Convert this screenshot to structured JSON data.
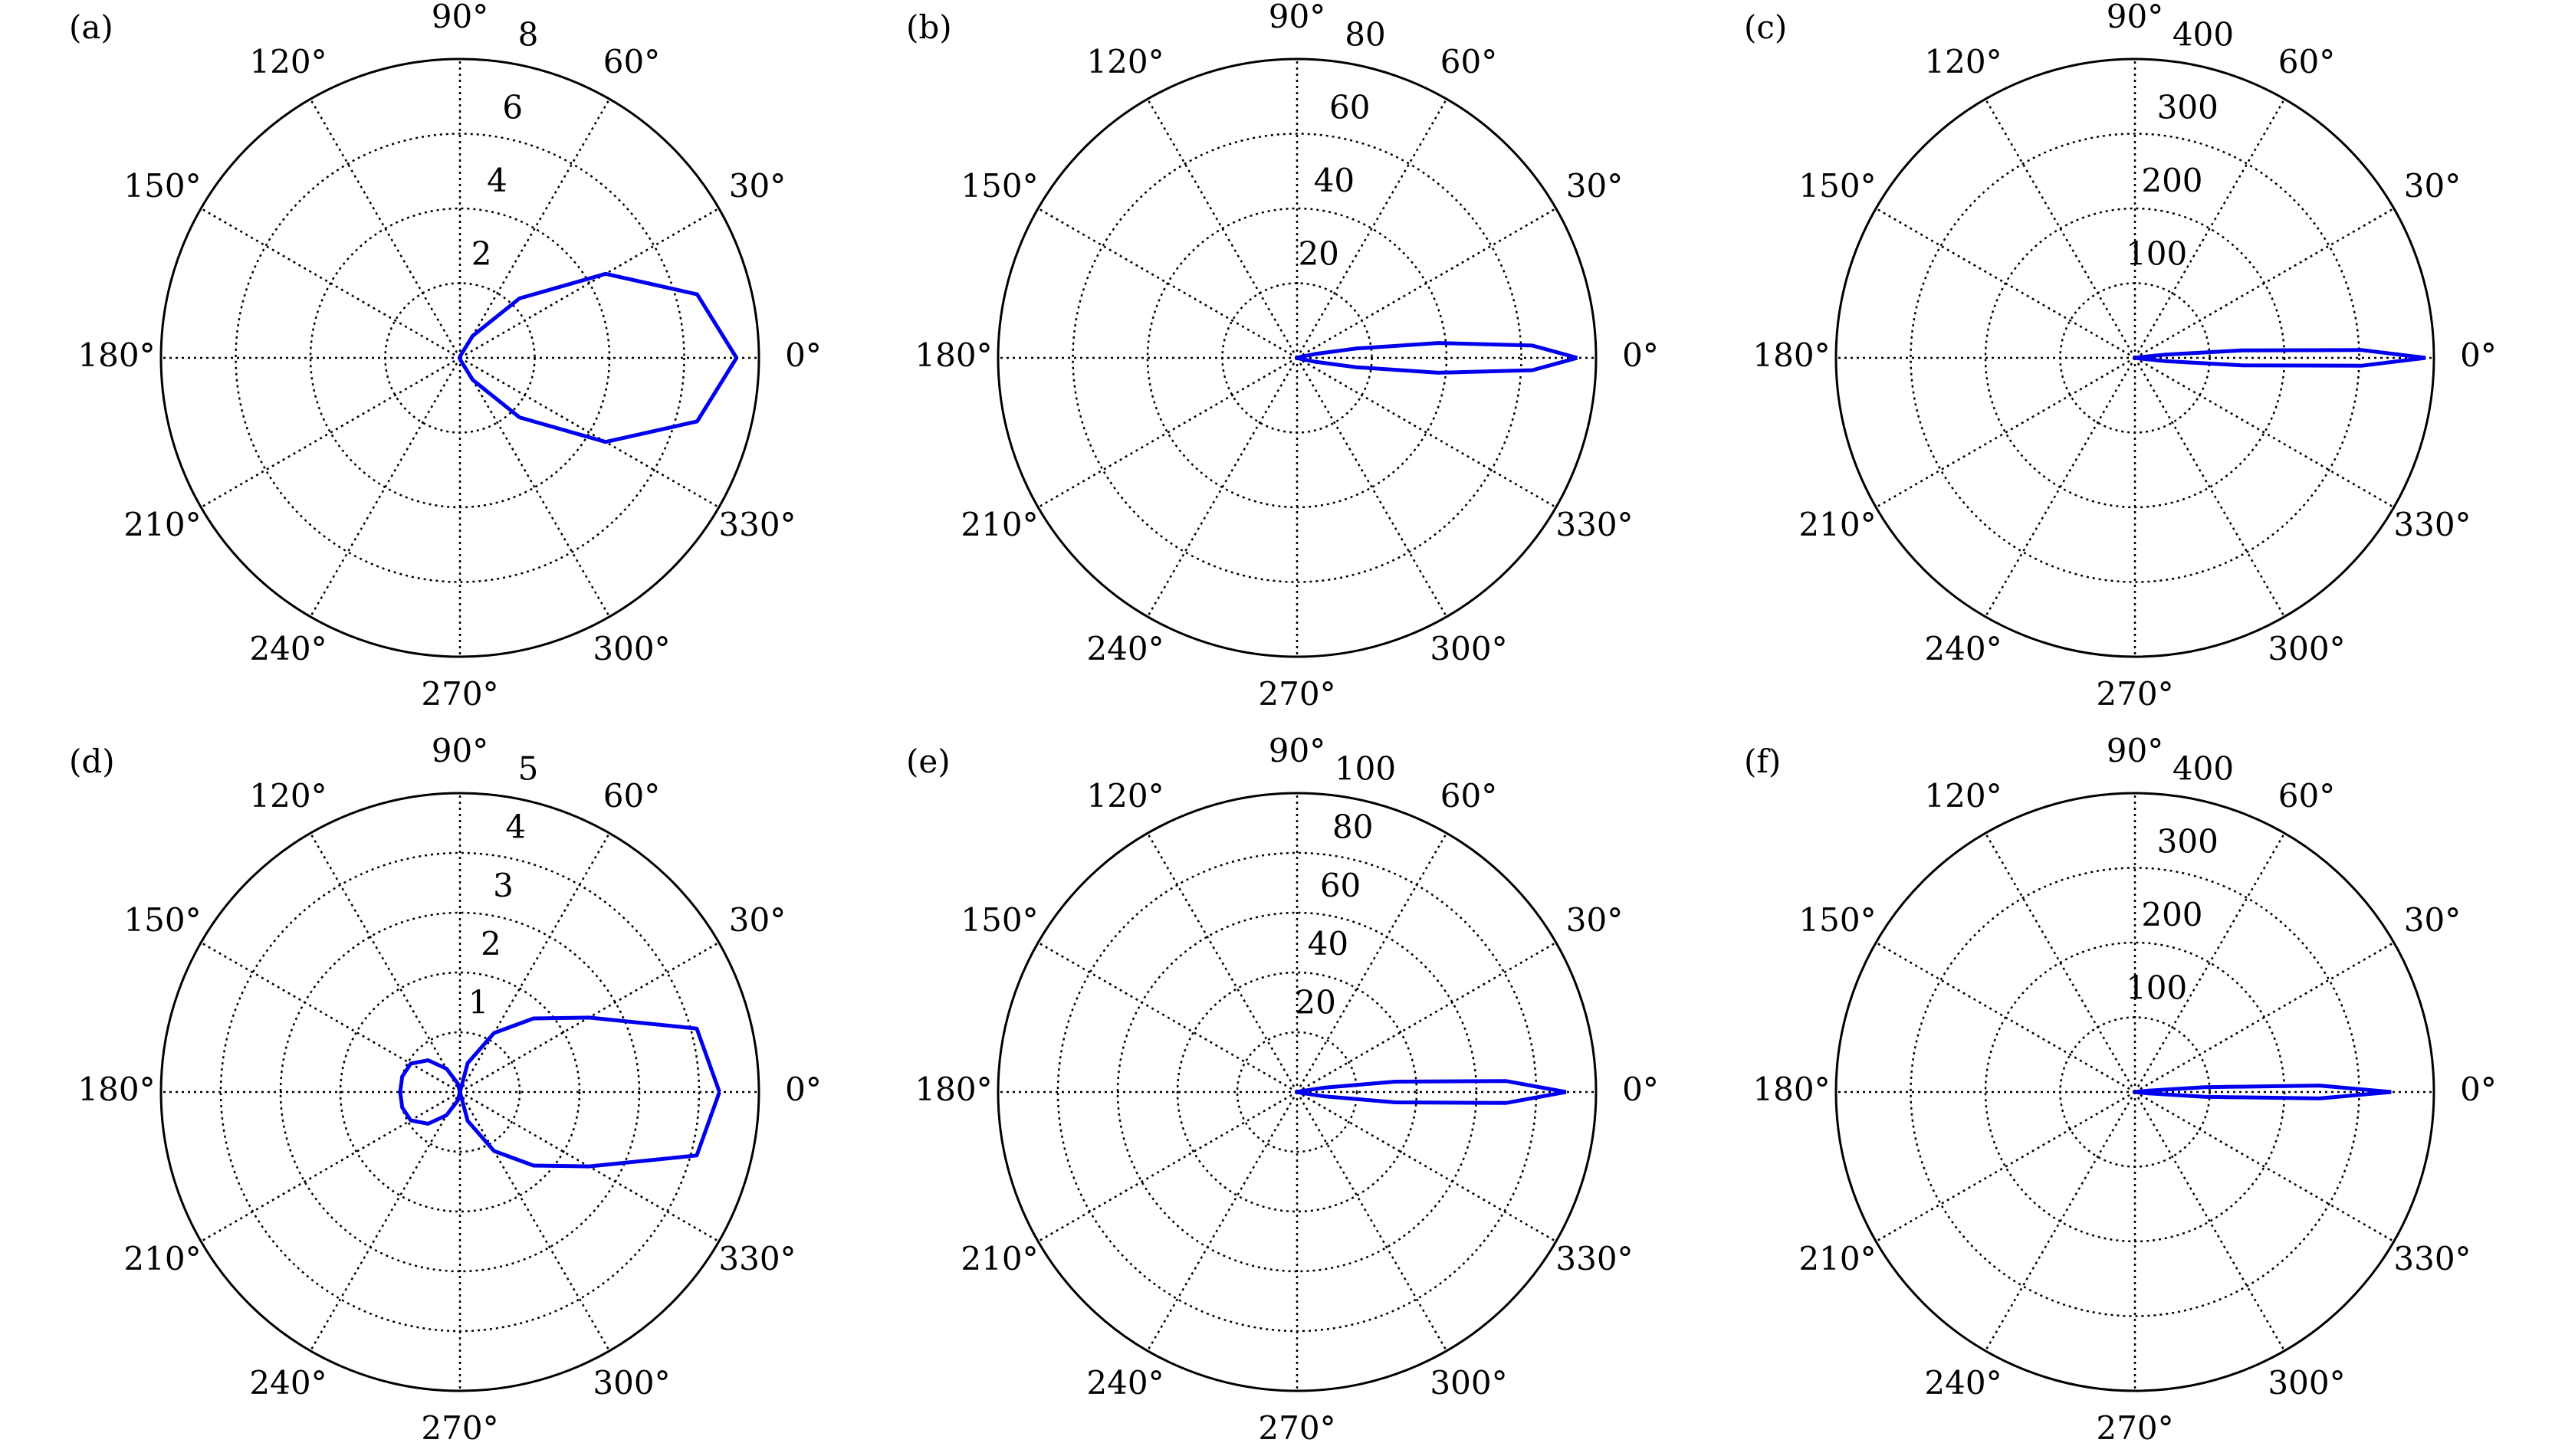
{
  "chart_data": [
    {
      "type": "polar",
      "label": "(a)",
      "color": "#0000ee",
      "grid": true,
      "rlim": [
        0,
        8
      ],
      "rticks": [
        2,
        4,
        6,
        8
      ],
      "thetaticks": [
        {
          "value": 0,
          "label": "0°"
        },
        {
          "value": 30,
          "label": "30°"
        },
        {
          "value": 60,
          "label": "60°"
        },
        {
          "value": 90,
          "label": "90°"
        },
        {
          "value": 120,
          "label": "120°"
        },
        {
          "value": 150,
          "label": "150°"
        },
        {
          "value": 180,
          "label": "180°"
        },
        {
          "value": 210,
          "label": "210°"
        },
        {
          "value": 240,
          "label": "240°"
        },
        {
          "value": 270,
          "label": "270°"
        },
        {
          "value": 300,
          "label": "300°"
        },
        {
          "value": 330,
          "label": "330°"
        }
      ],
      "x": [
        0,
        15,
        30,
        45,
        60,
        75,
        90,
        180,
        270,
        285,
        300,
        315,
        330,
        345,
        360
      ],
      "values": [
        7.4,
        6.57,
        4.5,
        2.25,
        0.68,
        0.07,
        0,
        0,
        0,
        0.07,
        0.68,
        2.25,
        4.5,
        6.57,
        7.4
      ]
    },
    {
      "type": "polar",
      "label": "(b)",
      "color": "#0000ee",
      "grid": true,
      "rlim": [
        0,
        80
      ],
      "rticks": [
        20,
        40,
        60,
        80
      ],
      "thetaticks": [
        {
          "value": 0,
          "label": "0°"
        },
        {
          "value": 30,
          "label": "30°"
        },
        {
          "value": 60,
          "label": "60°"
        },
        {
          "value": 90,
          "label": "90°"
        },
        {
          "value": 120,
          "label": "120°"
        },
        {
          "value": 150,
          "label": "150°"
        },
        {
          "value": 180,
          "label": "180°"
        },
        {
          "value": 210,
          "label": "210°"
        },
        {
          "value": 240,
          "label": "240°"
        },
        {
          "value": 270,
          "label": "270°"
        },
        {
          "value": 300,
          "label": "300°"
        },
        {
          "value": 330,
          "label": "330°"
        }
      ],
      "x": [
        0,
        3,
        6,
        9,
        12,
        15,
        20,
        90,
        180,
        270,
        340,
        345,
        348,
        351,
        354,
        357,
        360
      ],
      "values": [
        75,
        63,
        38,
        16,
        5,
        1,
        0,
        0,
        0,
        0,
        0,
        1,
        5,
        16,
        38,
        63,
        75
      ]
    },
    {
      "type": "polar",
      "label": "(c)",
      "color": "#0000ee",
      "grid": true,
      "rlim": [
        0,
        400
      ],
      "rticks": [
        100,
        200,
        300,
        400
      ],
      "thetaticks": [
        {
          "value": 0,
          "label": "0°"
        },
        {
          "value": 30,
          "label": "30°"
        },
        {
          "value": 60,
          "label": "60°"
        },
        {
          "value": 90,
          "label": "90°"
        },
        {
          "value": 120,
          "label": "120°"
        },
        {
          "value": 150,
          "label": "150°"
        },
        {
          "value": 180,
          "label": "180°"
        },
        {
          "value": 210,
          "label": "210°"
        },
        {
          "value": 240,
          "label": "240°"
        },
        {
          "value": 270,
          "label": "270°"
        },
        {
          "value": 300,
          "label": "300°"
        },
        {
          "value": 330,
          "label": "330°"
        }
      ],
      "x": [
        0,
        2,
        4,
        6,
        8,
        10,
        90,
        180,
        270,
        350,
        352,
        354,
        356,
        358,
        360
      ],
      "values": [
        389,
        303,
        143,
        41,
        7,
        0,
        0,
        0,
        0,
        0,
        7,
        41,
        143,
        303,
        389
      ]
    },
    {
      "type": "polar",
      "label": "(d)",
      "color": "#0000ee",
      "grid": true,
      "rlim": [
        0,
        5
      ],
      "rticks": [
        1,
        2,
        3,
        4,
        5
      ],
      "thetaticks": [
        {
          "value": 0,
          "label": "0°"
        },
        {
          "value": 30,
          "label": "30°"
        },
        {
          "value": 60,
          "label": "60°"
        },
        {
          "value": 90,
          "label": "90°"
        },
        {
          "value": 120,
          "label": "120°"
        },
        {
          "value": 150,
          "label": "150°"
        },
        {
          "value": 180,
          "label": "180°"
        },
        {
          "value": 210,
          "label": "210°"
        },
        {
          "value": 240,
          "label": "240°"
        },
        {
          "value": 270,
          "label": "270°"
        },
        {
          "value": 300,
          "label": "300°"
        },
        {
          "value": 330,
          "label": "330°"
        }
      ],
      "x": [
        0,
        15,
        30,
        45,
        60,
        75,
        90,
        105,
        120,
        135,
        150,
        165,
        180,
        195,
        210,
        225,
        240,
        255,
        270,
        285,
        300,
        315,
        330,
        345,
        360
      ],
      "values": [
        4.34,
        4.1,
        2.49,
        1.74,
        1.14,
        0.5,
        0,
        0.15,
        0.45,
        0.75,
        0.95,
        1.0,
        1.0,
        1.0,
        0.95,
        0.75,
        0.45,
        0.15,
        0,
        0.5,
        1.14,
        1.74,
        2.49,
        4.1,
        4.34
      ]
    },
    {
      "type": "polar",
      "label": "(e)",
      "color": "#0000ee",
      "grid": true,
      "rlim": [
        0,
        100
      ],
      "rticks": [
        20,
        40,
        60,
        80,
        100
      ],
      "thetaticks": [
        {
          "value": 0,
          "label": "0°"
        },
        {
          "value": 30,
          "label": "30°"
        },
        {
          "value": 60,
          "label": "60°"
        },
        {
          "value": 90,
          "label": "90°"
        },
        {
          "value": 120,
          "label": "120°"
        },
        {
          "value": 150,
          "label": "150°"
        },
        {
          "value": 180,
          "label": "180°"
        },
        {
          "value": 210,
          "label": "210°"
        },
        {
          "value": 240,
          "label": "240°"
        },
        {
          "value": 270,
          "label": "270°"
        },
        {
          "value": 300,
          "label": "300°"
        },
        {
          "value": 330,
          "label": "330°"
        }
      ],
      "x": [
        0,
        3,
        6,
        9,
        12,
        15,
        90,
        180,
        270,
        345,
        348,
        351,
        354,
        357,
        360
      ],
      "values": [
        90,
        70,
        33,
        9.5,
        1.6,
        0,
        0,
        0,
        0,
        0,
        1.6,
        9.5,
        33,
        70,
        90
      ]
    },
    {
      "type": "polar",
      "label": "(f)",
      "color": "#0000ee",
      "grid": true,
      "rlim": [
        0,
        400
      ],
      "rticks": [
        100,
        200,
        300,
        400
      ],
      "thetaticks": [
        {
          "value": 0,
          "label": "0°"
        },
        {
          "value": 30,
          "label": "30°"
        },
        {
          "value": 60,
          "label": "60°"
        },
        {
          "value": 90,
          "label": "90°"
        },
        {
          "value": 120,
          "label": "120°"
        },
        {
          "value": 150,
          "label": "150°"
        },
        {
          "value": 180,
          "label": "180°"
        },
        {
          "value": 210,
          "label": "210°"
        },
        {
          "value": 240,
          "label": "240°"
        },
        {
          "value": 270,
          "label": "270°"
        },
        {
          "value": 300,
          "label": "300°"
        },
        {
          "value": 330,
          "label": "330°"
        }
      ],
      "x": [
        0,
        2,
        4,
        6,
        8,
        10,
        90,
        180,
        270,
        350,
        352,
        354,
        356,
        358,
        360
      ],
      "values": [
        343,
        247,
        93,
        18,
        2,
        0,
        0,
        0,
        0,
        0,
        2,
        18,
        93,
        247,
        343
      ]
    }
  ]
}
